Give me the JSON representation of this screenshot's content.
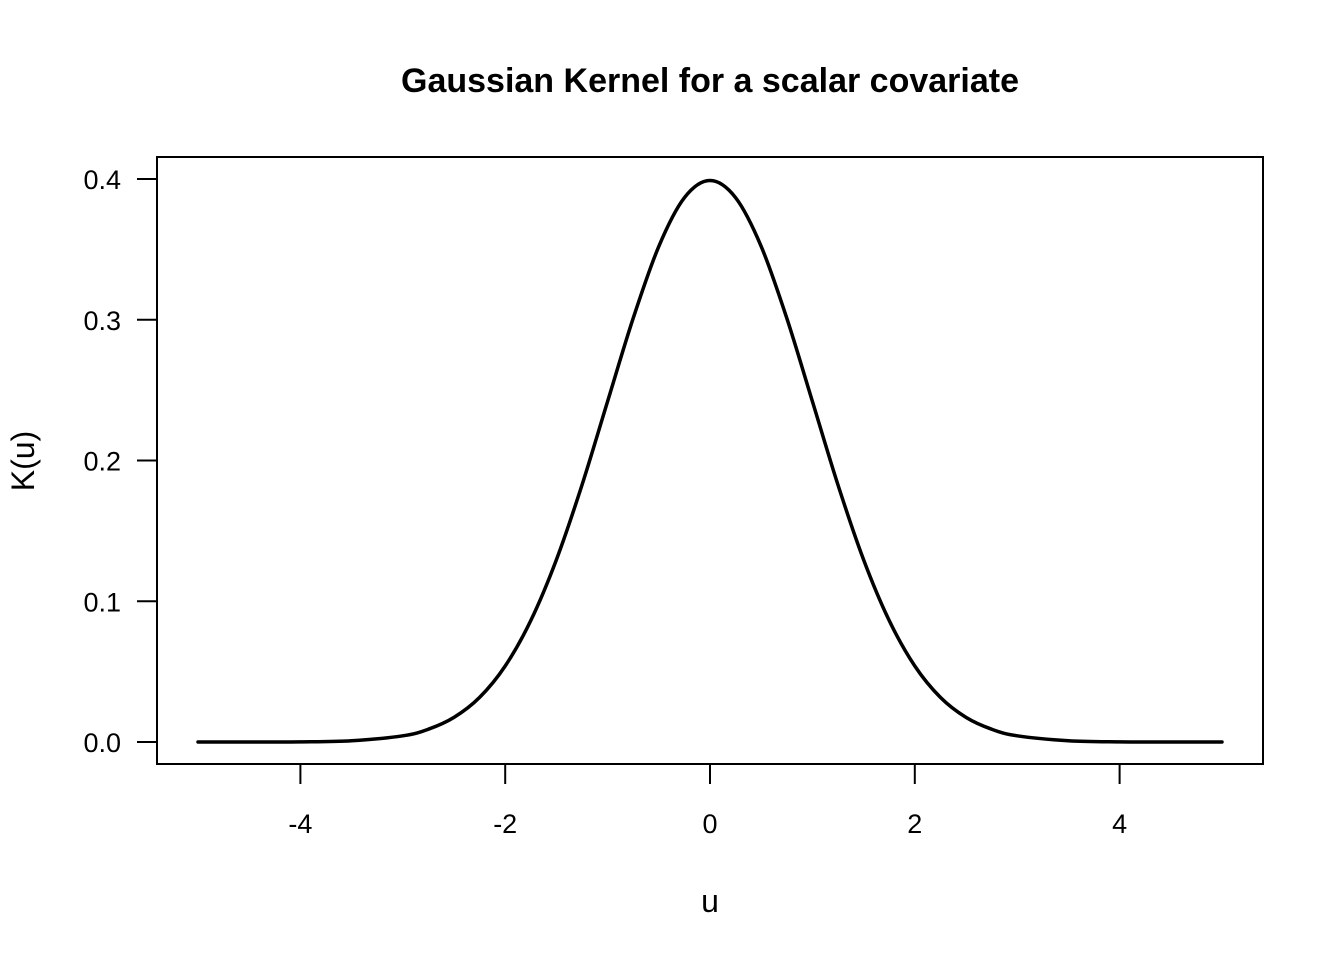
{
  "chart_data": {
    "type": "line",
    "title": "Gaussian Kernel for a scalar covariate",
    "xlabel": "u",
    "ylabel": "K(u)",
    "xlim": [
      -5,
      5
    ],
    "ylim": [
      0,
      0.4
    ],
    "x_ticks": [
      -4,
      -2,
      0,
      2,
      4
    ],
    "x_tick_labels": [
      "-4",
      "-2",
      "0",
      "2",
      "4"
    ],
    "y_ticks": [
      0,
      0.1,
      0.2,
      0.3,
      0.4
    ],
    "y_tick_labels": [
      "0.0",
      "0.1",
      "0.2",
      "0.3",
      "0.4"
    ],
    "grid": false,
    "legend": "none",
    "line_color": "#000000",
    "series": [
      {
        "x": [
          -5.0,
          -4.5,
          -4.0,
          -3.5,
          -3.0,
          -2.75,
          -2.5,
          -2.25,
          -2.0,
          -1.75,
          -1.5,
          -1.25,
          -1.0,
          -0.75,
          -0.5,
          -0.25,
          0.0,
          0.25,
          0.5,
          0.75,
          1.0,
          1.25,
          1.5,
          1.75,
          2.0,
          2.25,
          2.5,
          2.75,
          3.0,
          3.5,
          4.0,
          4.5,
          5.0
        ],
        "y": [
          0.0,
          0.0,
          0.0001,
          0.0009,
          0.0044,
          0.0091,
          0.0175,
          0.0317,
          0.054,
          0.0863,
          0.1295,
          0.1826,
          0.242,
          0.3011,
          0.3521,
          0.3867,
          0.3989,
          0.3867,
          0.3521,
          0.3011,
          0.242,
          0.1826,
          0.1295,
          0.0863,
          0.054,
          0.0317,
          0.0175,
          0.0091,
          0.0044,
          0.0009,
          0.0001,
          0.0,
          0.0
        ]
      }
    ]
  }
}
